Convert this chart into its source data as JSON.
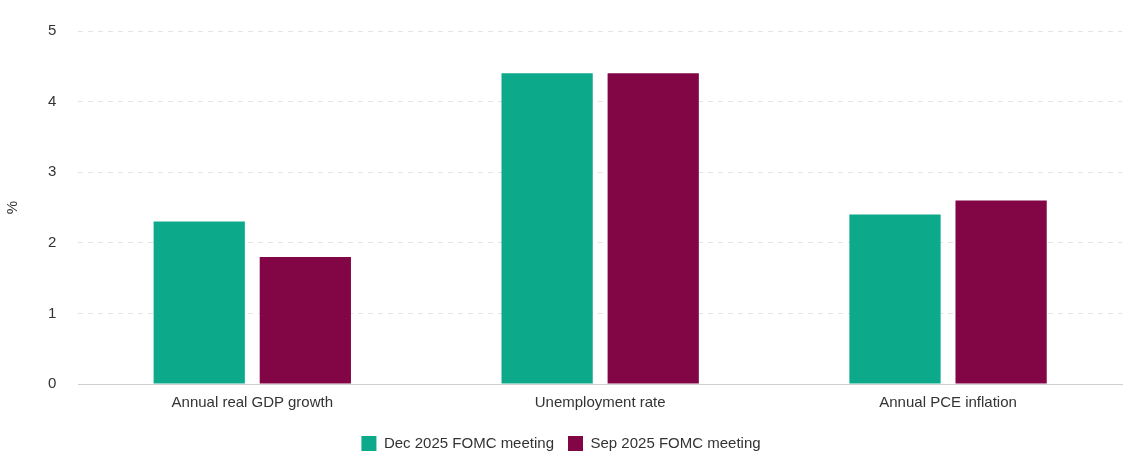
{
  "chart_data": {
    "type": "bar",
    "ylabel": "%",
    "categories": [
      "Annual real GDP growth",
      "Unemployment rate",
      "Annual PCE inflation"
    ],
    "series": [
      {
        "name": "Dec 2025 FOMC meeting",
        "color": "#0ca98a",
        "values": [
          2.3,
          4.4,
          2.4
        ]
      },
      {
        "name": "Sep 2025 FOMC meeting",
        "color": "#820645",
        "values": [
          1.8,
          4.4,
          2.6
        ]
      }
    ],
    "ylim": [
      0,
      5
    ],
    "yticks": [
      0,
      1,
      2,
      3,
      4,
      5
    ],
    "grid": "y",
    "legend": "bottom"
  }
}
